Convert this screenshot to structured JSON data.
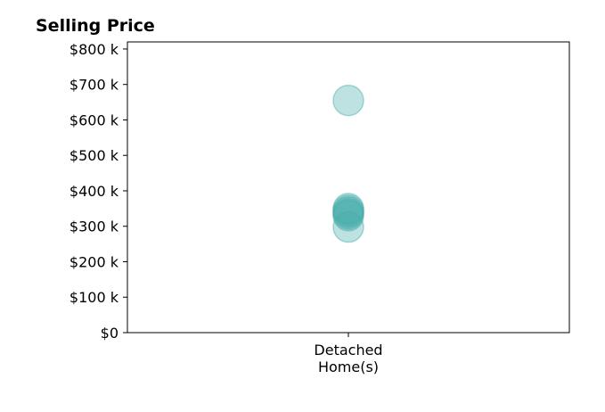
{
  "chart_data": {
    "type": "scatter",
    "title": "Selling Price",
    "xlabel": "",
    "ylabel": "",
    "categories": [
      "Detached\nHome(s)"
    ],
    "ylim": [
      0,
      820000
    ],
    "y_ticks": [
      0,
      100000,
      200000,
      300000,
      400000,
      500000,
      600000,
      700000,
      800000
    ],
    "y_tick_labels": [
      "$0",
      "$100 k",
      "$200 k",
      "$300 k",
      "$400 k",
      "$500 k",
      "$600 k",
      "$700 k",
      "$800 k"
    ],
    "grid": false,
    "points": [
      {
        "category": "Detached\nHome(s)",
        "y": 655000
      },
      {
        "category": "Detached\nHome(s)",
        "y": 350000
      },
      {
        "category": "Detached\nHome(s)",
        "y": 345000
      },
      {
        "category": "Detached\nHome(s)",
        "y": 340000
      },
      {
        "category": "Detached\nHome(s)",
        "y": 335000
      },
      {
        "category": "Detached\nHome(s)",
        "y": 330000
      },
      {
        "category": "Detached\nHome(s)",
        "y": 298000
      }
    ],
    "marker_color": "#45ada8",
    "marker_edge_color": "#45ada8"
  }
}
